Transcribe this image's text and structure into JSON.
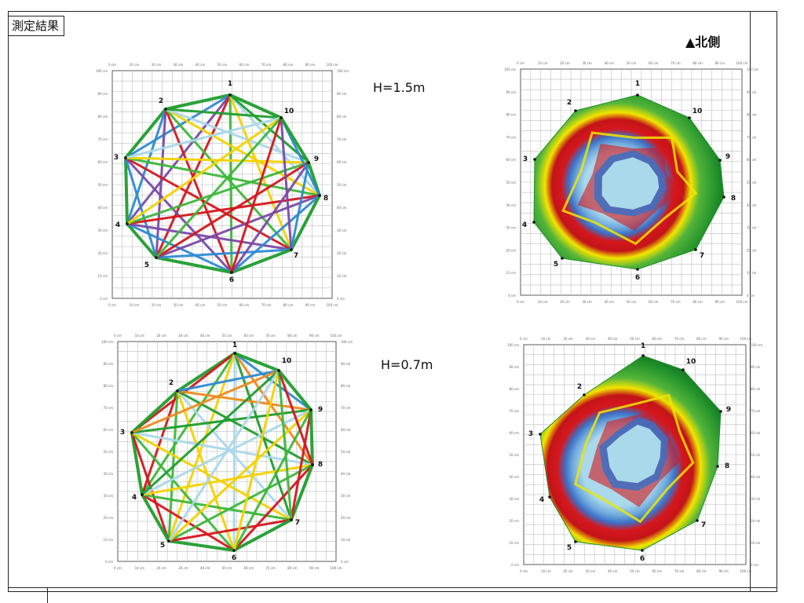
{
  "header": {
    "section_title": "測定結果",
    "north_label": "▲北側"
  },
  "levels": [
    {
      "label": "H=1.5m"
    },
    {
      "label": "H=0.7m"
    }
  ],
  "axis": {
    "x_ticks": [
      "0 cm",
      "10 cm",
      "20 cm",
      "30 cm",
      "40 cm",
      "50 cm",
      "60 cm",
      "70 cm",
      "80 cm",
      "90 cm",
      "100 cm"
    ],
    "y_ticks": [
      "0 cm",
      "10 cm",
      "20 cm",
      "30 cm",
      "40 cm",
      "50 cm",
      "60 cm",
      "70 cm",
      "80 cm",
      "90 cm",
      "100 cm"
    ]
  },
  "node_labels": [
    "1",
    "2",
    "3",
    "4",
    "5",
    "6",
    "7",
    "8",
    "9",
    "10"
  ],
  "legend_colors": {
    "sound": "#1f8f2a",
    "sound_dark": "#0d5a1b",
    "transition": "#f2e500",
    "decayed": "#d5171d",
    "cavity_edge": "#3c6fc4",
    "cavity": "#a9d9ea"
  },
  "ray_colors": [
    "#1f9e2f",
    "#3db83a",
    "#2e8bd3",
    "#a9d9ea",
    "#d5171d",
    "#f08a1d",
    "#f4d200",
    "#7b4aa8"
  ]
}
